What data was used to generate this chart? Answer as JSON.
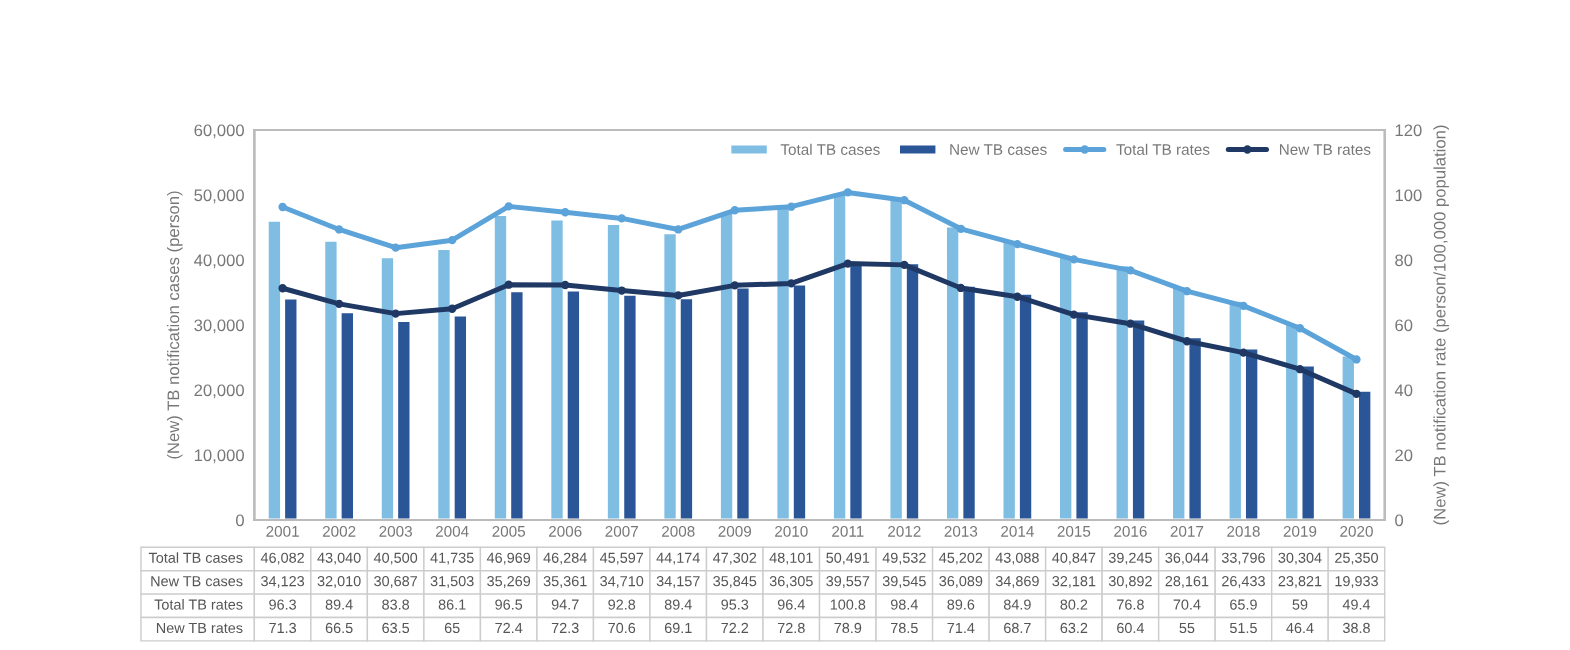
{
  "chart_data": {
    "type": "bar",
    "categories": [
      "2001",
      "2002",
      "2003",
      "2004",
      "2005",
      "2006",
      "2007",
      "2008",
      "2009",
      "2010",
      "2011",
      "2012",
      "2013",
      "2014",
      "2015",
      "2016",
      "2017",
      "2018",
      "2019",
      "2020"
    ],
    "series": [
      {
        "name": "Total TB cases",
        "color": "#7fbde3",
        "values": [
          46082,
          43040,
          40500,
          41735,
          46969,
          46284,
          45597,
          44174,
          47302,
          48101,
          50491,
          49532,
          45202,
          43088,
          40847,
          39245,
          36044,
          33796,
          30304,
          25350
        ],
        "value_labels": [
          "46,082",
          "43,040",
          "40,500",
          "41,735",
          "46,969",
          "46,284",
          "45,597",
          "44,174",
          "47,302",
          "48,101",
          "50,491",
          "49,532",
          "45,202",
          "43,088",
          "40,847",
          "39,245",
          "36,044",
          "33,796",
          "30,304",
          "25,350"
        ]
      },
      {
        "name": "New TB cases",
        "color": "#2a5597",
        "values": [
          34123,
          32010,
          30687,
          31503,
          35269,
          35361,
          34710,
          34157,
          35845,
          36305,
          39557,
          39545,
          36089,
          34869,
          32181,
          30892,
          28161,
          26433,
          23821,
          19933
        ],
        "value_labels": [
          "34,123",
          "32,010",
          "30,687",
          "31,503",
          "35,269",
          "35,361",
          "34,710",
          "34,157",
          "35,845",
          "36,305",
          "39,557",
          "39,545",
          "36,089",
          "34,869",
          "32,181",
          "30,892",
          "28,161",
          "26,433",
          "23,821",
          "19,933"
        ]
      },
      {
        "name": "Total TB rates",
        "type": "line",
        "axis": "y2",
        "color": "#5ba3d9",
        "values": [
          96.3,
          89.4,
          83.8,
          86.1,
          96.5,
          94.7,
          92.8,
          89.4,
          95.3,
          96.4,
          100.8,
          98.4,
          89.6,
          84.9,
          80.2,
          76.8,
          70.4,
          65.9,
          59,
          49.4
        ],
        "value_labels": [
          "96.3",
          "89.4",
          "83.8",
          "86.1",
          "96.5",
          "94.7",
          "92.8",
          "89.4",
          "95.3",
          "96.4",
          "100.8",
          "98.4",
          "89.6",
          "84.9",
          "80.2",
          "76.8",
          "70.4",
          "65.9",
          "59",
          "49.4"
        ]
      },
      {
        "name": "New TB rates",
        "type": "line",
        "axis": "y2",
        "color": "#1f3864",
        "values": [
          71.3,
          66.5,
          63.5,
          65,
          72.4,
          72.3,
          70.6,
          69.1,
          72.2,
          72.8,
          78.9,
          78.5,
          71.4,
          68.7,
          63.2,
          60.4,
          55,
          51.5,
          46.4,
          38.8
        ],
        "value_labels": [
          "71.3",
          "66.5",
          "63.5",
          "65",
          "72.4",
          "72.3",
          "70.6",
          "69.1",
          "72.2",
          "72.8",
          "78.9",
          "78.5",
          "71.4",
          "68.7",
          "63.2",
          "60.4",
          "55",
          "51.5",
          "46.4",
          "38.8"
        ]
      }
    ],
    "ylabel": "(New) TB notification cases (person)",
    "y2label": "(New) TB notification rate (person/100,000 population)",
    "ylim": [
      0,
      60000
    ],
    "yticks": [
      0,
      {
        "value": 10000,
        "label": "10,000"
      },
      {
        "value": 20000,
        "label": "20,000"
      },
      {
        "value": 30000,
        "label": "30,000"
      },
      {
        "value": 40000,
        "label": "40,000"
      },
      {
        "value": 50000,
        "label": "50,000"
      },
      {
        "value": 60000,
        "label": "60,000"
      }
    ],
    "y2lim": [
      0,
      120
    ],
    "y2ticks": [
      0,
      20,
      40,
      60,
      80,
      100,
      120
    ],
    "legend": "top right",
    "marker": "circle",
    "line_style": "solid"
  }
}
